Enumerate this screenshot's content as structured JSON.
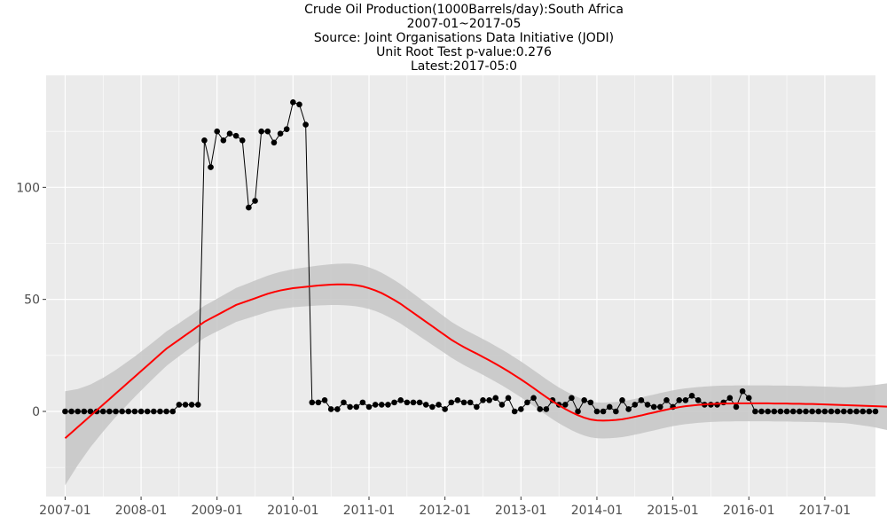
{
  "chart_data": {
    "type": "line",
    "title_lines": [
      "Crude Oil Production(1000Barrels/day):South Africa",
      "2007-01~2017-05",
      "Source: Joint Organisations Data Initiative (JODI)",
      "Unit Root Test p-value:0.276",
      "Latest:2017-05:0"
    ],
    "xlabel": "",
    "ylabel": "",
    "x_ticks": [
      "2007-01",
      "2008-01",
      "2009-01",
      "2010-01",
      "2011-01",
      "2012-01",
      "2013-01",
      "2014-01",
      "2015-01",
      "2016-01",
      "2017-01"
    ],
    "y_ticks": [
      0,
      50,
      100
    ],
    "xlim": [
      "2006-10",
      "2017-09"
    ],
    "ylim": [
      -38,
      150
    ],
    "grid": true,
    "start": "2007-01",
    "series": [
      {
        "values": [
          0,
          0,
          0,
          0,
          0,
          0,
          0,
          0,
          0,
          0,
          0,
          0,
          0,
          0,
          0,
          0,
          0,
          0,
          3,
          3,
          3,
          3,
          121,
          109,
          125,
          121,
          124,
          123,
          121,
          91,
          94,
          125,
          125,
          120,
          124,
          126,
          138,
          137,
          128,
          4,
          4,
          5,
          1,
          1,
          4,
          2,
          2,
          4,
          2,
          3,
          3,
          3,
          4,
          5,
          4,
          4,
          4,
          3,
          2,
          3,
          1,
          4,
          5,
          4,
          4,
          2,
          5,
          5,
          6,
          3,
          6,
          0,
          1,
          4,
          6,
          1,
          1,
          5,
          3,
          3,
          6,
          0,
          5,
          4,
          0,
          0,
          2,
          0,
          5,
          1,
          3,
          5,
          3,
          2,
          2,
          5,
          2,
          5,
          5,
          7,
          5,
          3,
          3,
          3,
          4,
          6,
          2,
          9,
          6,
          0,
          0,
          0,
          0,
          0,
          0,
          0,
          0,
          0,
          0,
          0,
          0,
          0,
          0,
          0,
          0,
          0,
          0,
          0,
          0
        ]
      },
      {
        "values": [
          -12,
          -9.5,
          -7,
          -4.5,
          -2,
          0.5,
          3,
          5.5,
          8,
          10.5,
          13,
          15.5,
          18,
          20.5,
          23,
          25.5,
          28,
          30,
          32,
          34,
          36,
          38,
          40,
          41.5,
          43,
          44.5,
          46,
          47.5,
          48.5,
          49.5,
          50.5,
          51.5,
          52.5,
          53.3,
          54,
          54.5,
          55,
          55.3,
          55.6,
          55.9,
          56.2,
          56.4,
          56.6,
          56.7,
          56.7,
          56.6,
          56.3,
          55.8,
          55,
          54,
          52.8,
          51.3,
          49.7,
          48,
          46,
          44,
          42,
          40,
          38,
          36,
          34,
          32,
          30.3,
          28.7,
          27.2,
          25.8,
          24.3,
          22.8,
          21.2,
          19.6,
          17.9,
          16.1,
          14.3,
          12.4,
          10.4,
          8.4,
          6.4,
          4.5,
          2.7,
          1.1,
          -0.4,
          -1.7,
          -2.8,
          -3.6,
          -4,
          -4.1,
          -4,
          -3.8,
          -3.5,
          -3,
          -2.4,
          -1.8,
          -1.1,
          -0.5,
          0.2,
          0.8,
          1.4,
          1.9,
          2.3,
          2.6,
          2.9,
          3.1,
          3.3,
          3.4,
          3.5,
          3.5,
          3.6,
          3.6,
          3.6,
          3.6,
          3.6,
          3.6,
          3.5,
          3.5,
          3.5,
          3.4,
          3.4,
          3.3,
          3.3,
          3.2,
          3.1,
          3,
          2.9,
          2.8,
          2.7,
          2.6,
          2.5,
          2.4,
          2.3,
          2.2,
          2.1,
          2,
          1.9,
          1.8,
          1.7,
          1.6,
          1.5,
          1.4,
          1.3,
          1.2,
          1.1,
          1,
          0.9,
          0.8,
          0.7,
          0.6,
          0.5,
          0.4,
          0.3,
          0.2,
          0.1,
          0,
          -0.1,
          -0.2,
          -0.3
        ]
      }
    ],
    "band_center_ref": "series.1",
    "band_half_width": [
      21,
      19,
      17,
      15.5,
      14,
      13,
      12,
      11.2,
      10.5,
      10,
      9.5,
      9,
      8.7,
      8.4,
      8.1,
      7.9,
      7.7,
      7.5,
      7.4,
      7.3,
      7.2,
      7.2,
      7.2,
      7.2,
      7.3,
      7.4,
      7.5,
      7.6,
      7.7,
      7.8,
      7.9,
      8,
      8.1,
      8.2,
      8.3,
      8.4,
      8.5,
      8.6,
      8.7,
      8.8,
      8.9,
      9,
      9.1,
      9.2,
      9.3,
      9.4,
      9.4,
      9.4,
      9.3,
      9.2,
      9.1,
      9,
      8.9,
      8.8,
      8.7,
      8.6,
      8.5,
      8.4,
      8.3,
      8.2,
      8.1,
      8,
      8,
      8,
      8,
      8,
      8,
      8,
      8,
      8,
      8,
      8,
      8,
      8,
      8,
      8,
      8,
      8,
      8,
      8,
      8,
      8,
      8,
      8,
      8,
      8,
      8,
      8,
      8,
      8,
      8,
      8,
      8,
      8,
      8,
      8,
      8,
      8,
      8,
      8,
      8,
      8,
      8,
      8,
      8,
      8,
      8,
      8,
      8,
      8,
      8,
      8,
      8,
      8,
      8,
      8,
      8,
      8,
      8,
      8,
      8,
      8,
      8,
      8,
      8.2,
      8.5,
      8.8,
      9.1,
      9.5,
      10,
      10.5,
      11,
      11.5,
      12,
      12.5,
      13,
      13.6,
      14.2,
      14.8,
      15.4,
      16,
      16.6,
      17.2,
      17.8,
      18.4,
      19,
      19.6,
      20.2,
      20.8,
      21.4
    ],
    "colors": {
      "points": "#000000",
      "line": "#000000",
      "trend": "#ff0000",
      "band": "#c6c6c6",
      "panel": "#ebebeb",
      "grid": "#ffffff"
    }
  }
}
